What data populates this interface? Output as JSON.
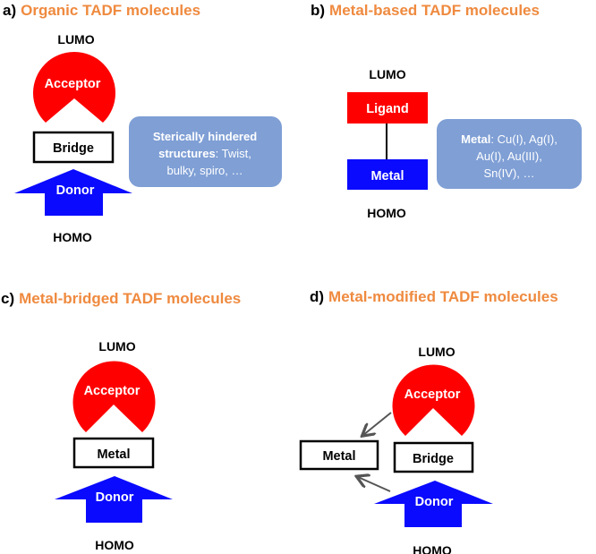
{
  "colors": {
    "title": "#ef8a3f",
    "acceptor": "#ff0000",
    "donor": "#0a0aff",
    "note_box": "#7f9fd5",
    "arrow": "#555555"
  },
  "panels": {
    "a": {
      "letter": "a)",
      "title": "Organic TADF molecules",
      "lumo": "LUMO",
      "homo": "HOMO",
      "acceptor": "Acceptor",
      "bridge": "Bridge",
      "donor": "Donor",
      "note": {
        "bold1": "Sterically hindered",
        "bold2": "structures",
        "rest2": ":  Twist,",
        "line3": "bulky, spiro, …"
      }
    },
    "b": {
      "letter": "b)",
      "title": "Metal-based TADF molecules",
      "lumo": "LUMO",
      "homo": "HOMO",
      "ligand": "Ligand",
      "metal": "Metal",
      "note": {
        "bold1": "Metal",
        "rest1": ": Cu(I), Ag(I),",
        "line2": "Au(I), Au(III),",
        "line3": "Sn(IV), …"
      }
    },
    "c": {
      "letter": "c)",
      "title": "Metal-bridged TADF molecules",
      "lumo": "LUMO",
      "homo": "HOMO",
      "acceptor": "Acceptor",
      "metal": "Metal",
      "donor": "Donor"
    },
    "d": {
      "letter": "d)",
      "title": "Metal-modified TADF molecules",
      "lumo": "LUMO",
      "homo": "HOMO",
      "acceptor": "Acceptor",
      "metal": "Metal",
      "bridge": "Bridge",
      "donor": "Donor"
    }
  }
}
